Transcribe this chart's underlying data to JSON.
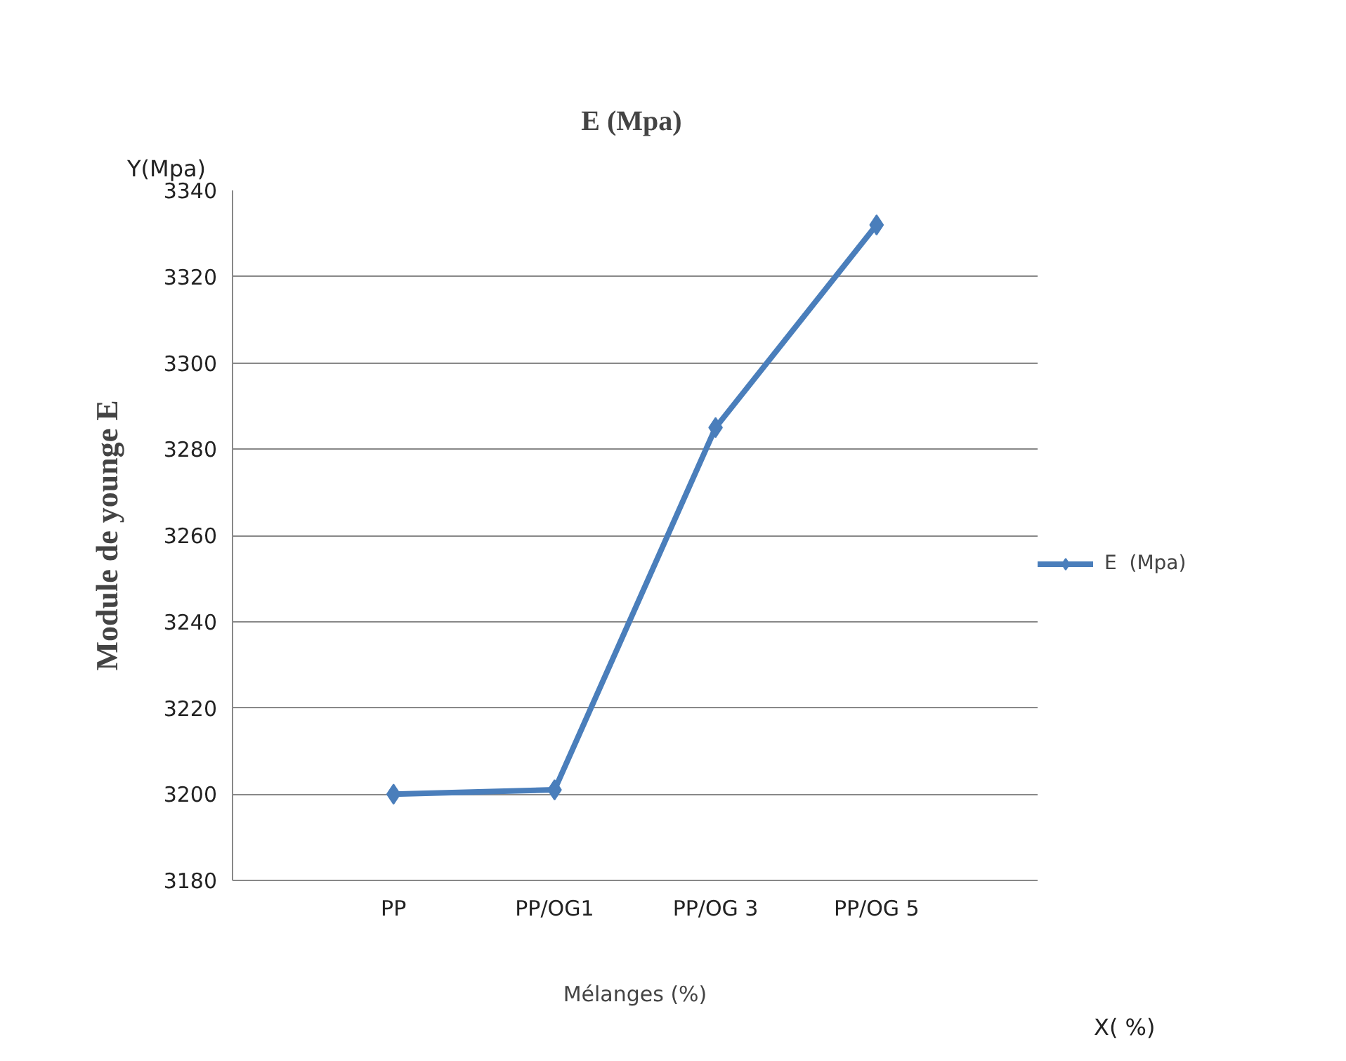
{
  "chart_data": {
    "type": "line",
    "title": "E  (Mpa)",
    "xlabel": "Mélanges (%)",
    "ylabel": "Module de younge E",
    "annotations": [
      "Y(Mpa)",
      "X( %)"
    ],
    "categories": [
      "PP",
      "PP/OG1",
      "PP/OG 3",
      "PP/OG 5"
    ],
    "series": [
      {
        "name": "E  (Mpa)",
        "color": "#4a7ebb",
        "values": [
          3200,
          3201,
          3285,
          3332
        ]
      }
    ],
    "ylim": [
      3180,
      3340
    ],
    "yticks": [
      3180,
      3200,
      3220,
      3240,
      3260,
      3280,
      3300,
      3320,
      3340
    ],
    "grid": "y",
    "legend": "right",
    "marker": "diamond",
    "line_style": "solid"
  }
}
